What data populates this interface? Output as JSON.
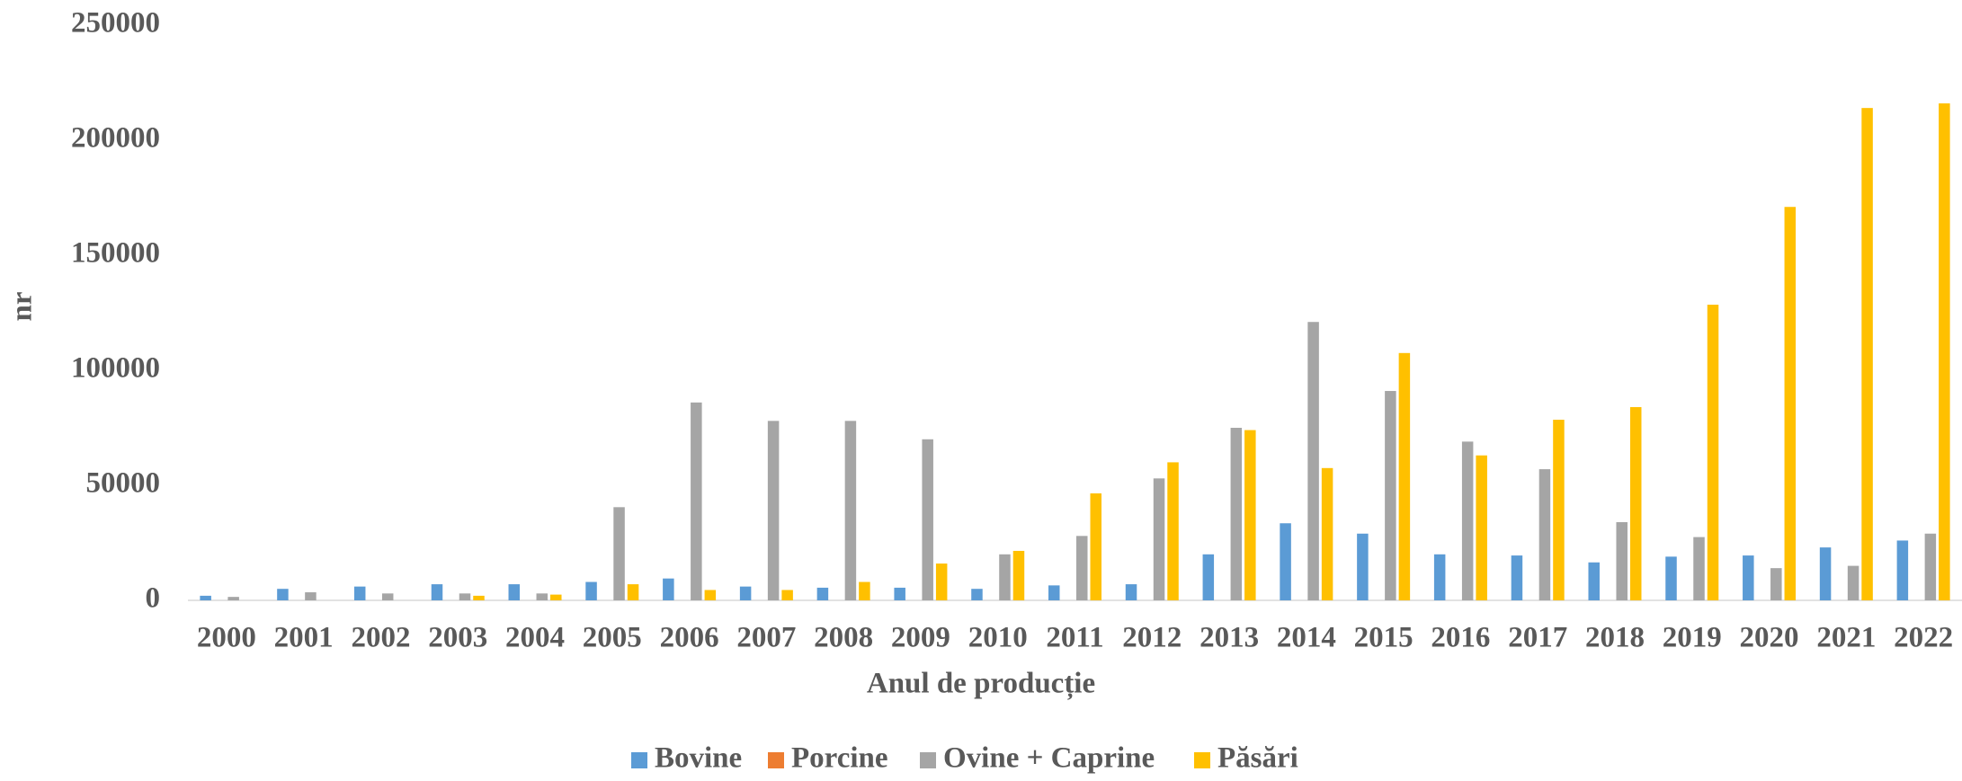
{
  "chart_data": {
    "type": "bar",
    "x_label": "Anul de producție",
    "y_label": "nr",
    "categories": [
      "2000",
      "2001",
      "2002",
      "2003",
      "2004",
      "2005",
      "2006",
      "2007",
      "2008",
      "2009",
      "2010",
      "2011",
      "2012",
      "2013",
      "2014",
      "2015",
      "2016",
      "2017",
      "2018",
      "2019",
      "2020",
      "2021",
      "2022"
    ],
    "series": [
      {
        "name": "Bovine",
        "color": "#5b9bd5",
        "values": [
          2000,
          5000,
          6000,
          7000,
          7000,
          8000,
          9500,
          6000,
          5500,
          5500,
          5000,
          6500,
          7000,
          20000,
          33500,
          29000,
          20000,
          19500,
          16500,
          19000,
          19500,
          23000,
          26000
        ]
      },
      {
        "name": "Porcine",
        "color": "#ed7d31",
        "values": [
          0,
          0,
          0,
          0,
          0,
          0,
          0,
          0,
          0,
          0,
          0,
          0,
          0,
          0,
          0,
          0,
          0,
          0,
          0,
          0,
          0,
          0,
          0
        ]
      },
      {
        "name": "Ovine + Caprine",
        "color": "#a5a5a5",
        "values": [
          1500,
          3500,
          3000,
          3000,
          3000,
          40500,
          86000,
          78000,
          78000,
          70000,
          20000,
          28000,
          53000,
          75000,
          121000,
          91000,
          69000,
          57000,
          34000,
          27500,
          14000,
          15000,
          29000
        ]
      },
      {
        "name": "Păsări",
        "color": "#ffc000",
        "values": [
          0,
          0,
          0,
          2000,
          2500,
          7000,
          4500,
          4500,
          8000,
          16000,
          21500,
          46500,
          60000,
          74000,
          57500,
          107500,
          63000,
          78500,
          84000,
          128500,
          171000,
          214000,
          216000
        ]
      }
    ],
    "ylim": [
      0,
      250000
    ],
    "yticks": [
      0,
      50000,
      100000,
      150000,
      200000,
      250000
    ],
    "grid": false,
    "legend": "bottom"
  }
}
